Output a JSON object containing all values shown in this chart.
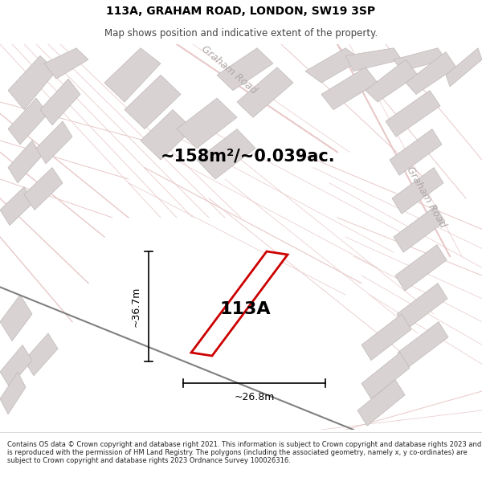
{
  "title": "113A, GRAHAM ROAD, LONDON, SW19 3SP",
  "subtitle": "Map shows position and indicative extent of the property.",
  "area_label": "~158m²/~0.039ac.",
  "property_label": "113A",
  "dim_width": "~26.8m",
  "dim_height": "~36.7m",
  "footer": "Contains OS data © Crown copyright and database right 2021. This information is subject to Crown copyright and database rights 2023 and is reproduced with the permission of HM Land Registry. The polygons (including the associated geometry, namely x, y co-ordinates) are subject to Crown copyright and database rights 2023 Ordnance Survey 100026316.",
  "bg_color": "#f2eeee",
  "map_bg": "#f0ecec",
  "road_color": "#e8c8c8",
  "building_color": "#d8d2d2",
  "building_edge": "#c0b8b8",
  "property_fill": "#ffffff",
  "property_edge": "#cc0000",
  "road_label_color": "#b0a8a8",
  "title_color": "#000000",
  "footer_color": "#222222",
  "dark_road_color": "#888888",
  "title_fontsize": 10,
  "subtitle_fontsize": 8.5,
  "area_fontsize": 15,
  "property_fontsize": 16,
  "dim_fontsize": 9,
  "road_label_fontsize": 9,
  "footer_fontsize": 6.0
}
